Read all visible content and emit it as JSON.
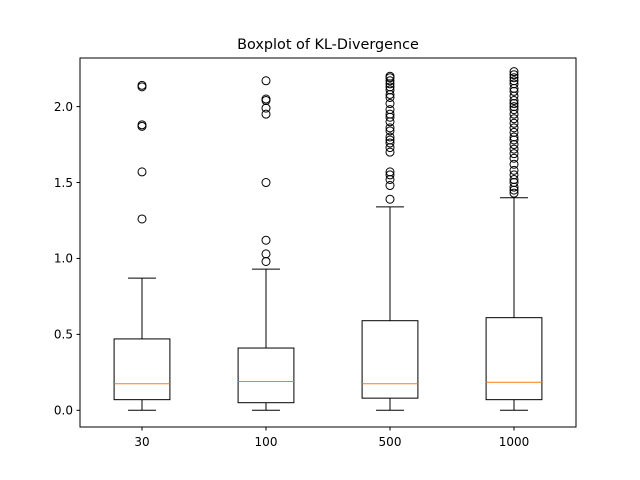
{
  "chart_data": {
    "type": "boxplot",
    "title": "Boxplot of KL-Divergence",
    "xlabel": "",
    "ylabel": "",
    "categories": [
      "30",
      "100",
      "500",
      "1000"
    ],
    "ylim": [
      -0.11,
      2.32
    ],
    "yticks": [
      0.0,
      0.5,
      1.0,
      1.5,
      2.0
    ],
    "ytick_labels": [
      "0.0",
      "0.5",
      "1.0",
      "1.5",
      "2.0"
    ],
    "grid": false,
    "colors": {
      "box": "#000000",
      "median": "#ff7f0e",
      "flier": "#000000",
      "background": "#ffffff"
    },
    "boxes": [
      {
        "label": "30",
        "whisker_low": 0.0,
        "q1": 0.07,
        "median": 0.175,
        "q3": 0.47,
        "whisker_high": 0.87,
        "fliers": [
          1.26,
          1.57,
          1.87,
          1.88,
          2.13,
          2.14
        ]
      },
      {
        "label": "100",
        "whisker_low": 0.0,
        "q1": 0.05,
        "median": 0.19,
        "q3": 0.41,
        "whisker_high": 0.93,
        "fliers": [
          0.98,
          1.03,
          1.12,
          1.5,
          1.95,
          1.99,
          2.04,
          2.05,
          2.17
        ]
      },
      {
        "label": "500",
        "whisker_low": 0.0,
        "q1": 0.08,
        "median": 0.175,
        "q3": 0.59,
        "whisker_high": 1.34,
        "fliers": [
          1.39,
          1.48,
          1.52,
          1.55,
          1.57,
          1.7,
          1.73,
          1.76,
          1.78,
          1.8,
          1.84,
          1.86,
          1.9,
          1.93,
          1.95,
          1.98,
          2.02,
          2.06,
          2.08,
          2.11,
          2.13,
          2.15,
          2.17,
          2.19,
          2.2
        ]
      },
      {
        "label": "1000",
        "whisker_low": 0.0,
        "q1": 0.07,
        "median": 0.185,
        "q3": 0.61,
        "whisker_high": 1.4,
        "fliers": [
          1.43,
          1.45,
          1.47,
          1.5,
          1.52,
          1.55,
          1.58,
          1.62,
          1.66,
          1.69,
          1.72,
          1.75,
          1.78,
          1.8,
          1.83,
          1.86,
          1.89,
          1.92,
          1.95,
          1.98,
          2.0,
          2.02,
          2.04,
          2.07,
          2.1,
          2.12,
          2.15,
          2.17,
          2.19,
          2.21,
          2.23
        ]
      }
    ]
  }
}
